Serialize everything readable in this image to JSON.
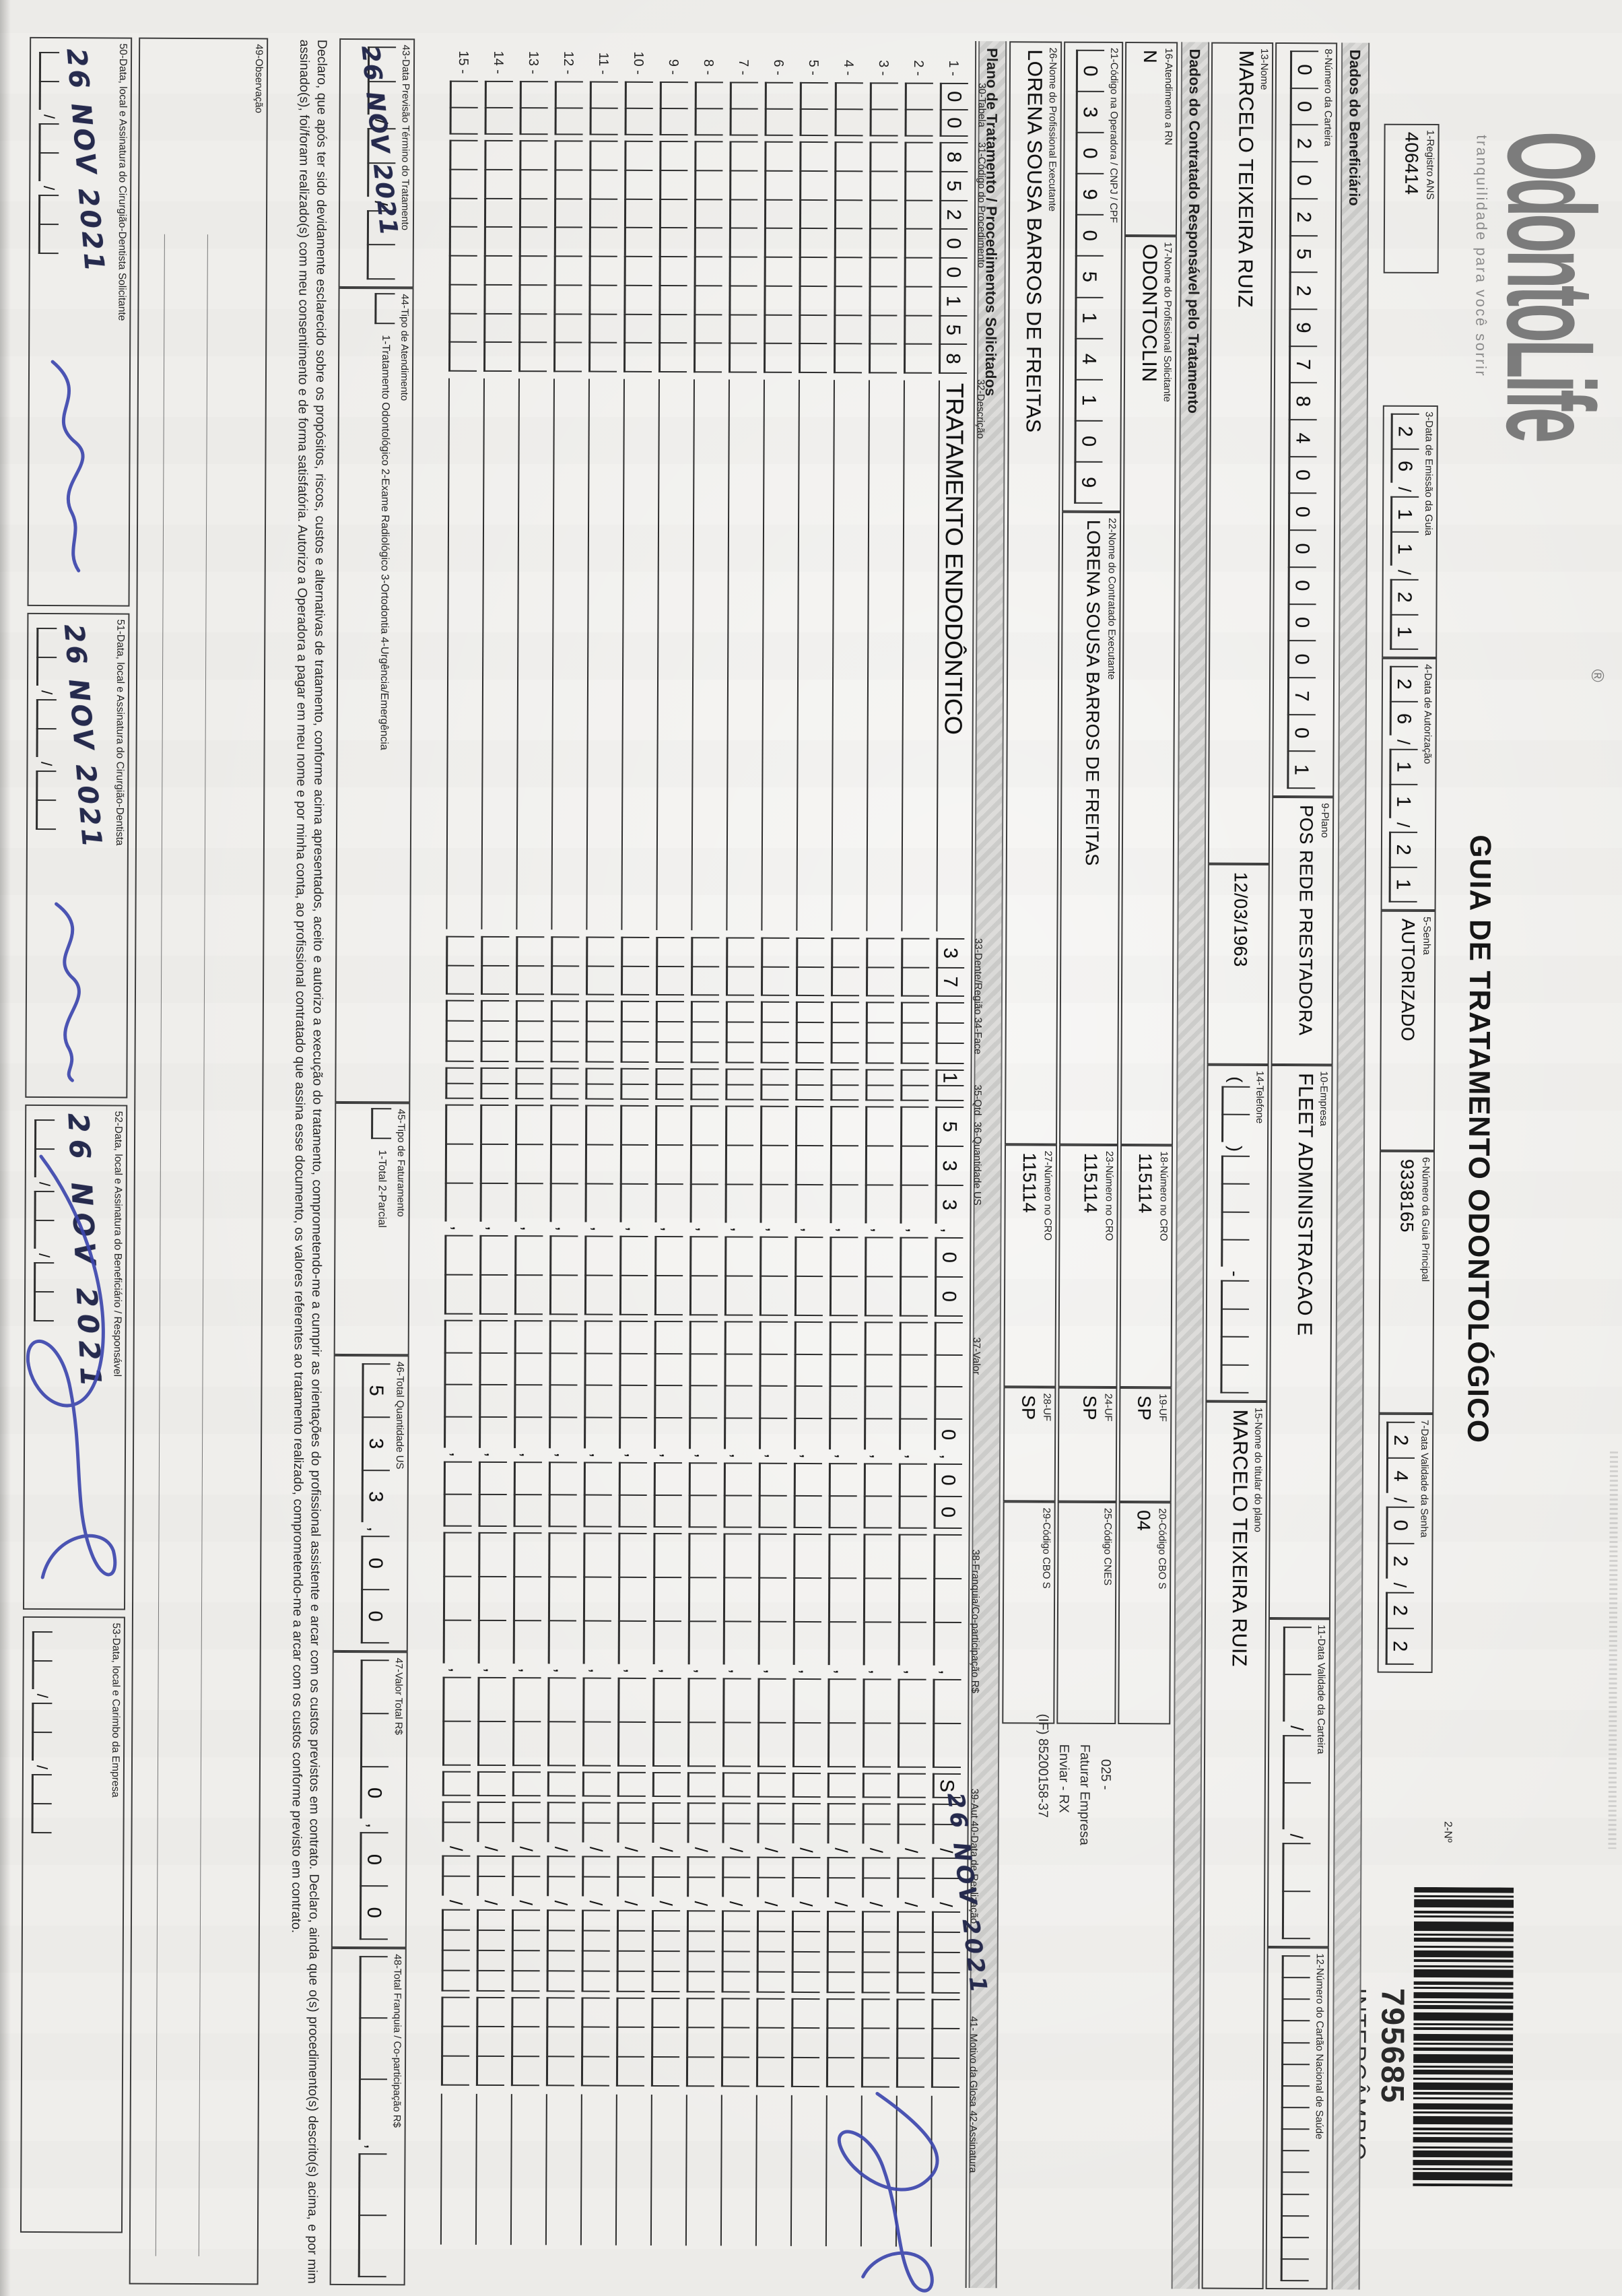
{
  "page": {
    "logo": {
      "text": "OdontoLife",
      "reg": "®",
      "tagline": "tranquilidade para você sorrir"
    },
    "title": "GUIA DE TRATAMENTO ODONTOLÓGICO",
    "no_label": "2-Nº",
    "barcode": {
      "number": "795685",
      "caption": "INTERCÂMBIO"
    },
    "dividers": {
      "beneficiario": "Dados do Beneficiário",
      "contratado": "Dados do Contratado Responsável pelo Tratamento",
      "plano": "Plano de Tratamento / Procedimentos Solicitados"
    }
  },
  "fields": {
    "f1": {
      "label": "1-Registro ANS",
      "value": "406414"
    },
    "f3": {
      "label": "3-Data de Emissão da Guia",
      "cells": "26/11/21"
    },
    "f4": {
      "label": "4-Data de Autorização",
      "cells": "26/11/21"
    },
    "f5": {
      "label": "5-Senha",
      "value": "AUTORIZADO"
    },
    "f6": {
      "label": "6-Número da Guia Principal",
      "value": "9338165"
    },
    "f7": {
      "label": "7-Data Validade da Senha",
      "cells": "24/02/22"
    },
    "f8": {
      "label": "8-Número da Carteira",
      "cells": "00202529784000000701"
    },
    "f9": {
      "label": "9-Plano",
      "value": "POS REDE PRESTADORA"
    },
    "f10": {
      "label": "10-Empresa",
      "value": "FLEET ADMINISTRACAO E"
    },
    "f11": {
      "label": "11-Data Validade da Carteira",
      "cells": "  /  /  "
    },
    "f12": {
      "label": "12-Número do Cartão Nacional de Saúde",
      "cells": "               "
    },
    "f13": {
      "label": "13-Nome",
      "value": "MARCELO TEIXEIRA RUIZ"
    },
    "f13b": {
      "label": "",
      "value": "12/03/1963"
    },
    "f14": {
      "label": "14-Telefone",
      "cells": "(  )    -    "
    },
    "f15": {
      "label": "15-Nome do titular do plano",
      "value": "MARCELO TEIXEIRA RUIZ"
    },
    "f16": {
      "label": "16-Atendimento a RN",
      "value": "N"
    },
    "f17": {
      "label": "17-Nome do Profissional Solicitante",
      "value": "ODONTOCLIN"
    },
    "f18": {
      "label": "18-Número no CRO",
      "value": "115114"
    },
    "f19": {
      "label": "19-UF",
      "value": "SP"
    },
    "f20": {
      "label": "20-Código CBO S",
      "value": "04"
    },
    "f21": {
      "label": "21-Código na Operadora / CNPJ / CPF",
      "cells": "03090514109"
    },
    "f22": {
      "label": "22-Nome do Contratado Executante",
      "value": "LORENA SOUSA BARROS DE FREITAS"
    },
    "f23": {
      "label": "23-Número no CRO",
      "value": "115114"
    },
    "f24": {
      "label": "24-UF",
      "value": "SP"
    },
    "f25": {
      "label": "25-Código CNES",
      "value": " "
    },
    "f26": {
      "label": "26-Nome do Profissional Executante",
      "value": "LORENA SOUSA BARROS DE FREITAS"
    },
    "f27": {
      "label": "27-Número no CRO",
      "value": "115114"
    },
    "f28": {
      "label": "28-UF",
      "value": "SP"
    },
    "f29": {
      "label": "29-Código CBO S",
      "value": " "
    },
    "f43": {
      "label": "43-Data Previsão Término do Tratamento",
      "cells": "  /  /  "
    },
    "f44": {
      "label": "44-Tipo de Atendimento",
      "cells": " ",
      "legend": "1-Tratamento Odontológico   2-Exame Radiológico   3-Ortodontia   4-Urgência/Emergência"
    },
    "f45": {
      "label": "45-Tipo de Faturamento",
      "cells": " ",
      "legend": "1-Total   2-Parcial"
    },
    "f46": {
      "label": "46-Total Quantidade US",
      "cells": "533,00"
    },
    "f47": {
      "label": "47-Valor Total R$",
      "cells": "  0,00"
    },
    "f48": {
      "label": "48-Total Franquia / Co-participação R$",
      "cells": "   ,  "
    },
    "f49": {
      "label": "49-Observação"
    }
  },
  "annotation": {
    "l1": "025 -",
    "l2": "Faturar Empresa",
    "l3": "Enviar - RX",
    "l4": "(IF) 85200158-37"
  },
  "table": {
    "headers": {
      "h30": "30-Tabela",
      "h31": "31-Código do Procedimento",
      "h32": "32-Descrição",
      "h33": "33-Dente/Região",
      "h34": "34-Face",
      "h35": "35-Qtd",
      "h36": "36-Quantidade US",
      "h37": "37-Valor",
      "h38": "38-Franquia/Co-participação R$",
      "h39": "39-Aut",
      "h40": "40-Data de Realização",
      "h41": "41- Motivo da Glosa",
      "h42": "42-Assinatura"
    },
    "rows": [
      {
        "n": "1 -",
        "tabela": "00",
        "codigo": "85200158",
        "desc": "TRATAMENTO ENDODÔNTICO",
        "dente": "37",
        "face": "   ",
        "qtd": "1 ",
        "qus": "533,00",
        "valor": "   0,00",
        "fran": "   ,  ",
        "aut": "S",
        "data": "  /  /    ",
        "glosa": "   ",
        "ass": ""
      },
      {
        "n": "2 -",
        "tabela": "  ",
        "codigo": "        ",
        "desc": "",
        "dente": "  ",
        "face": "   ",
        "qtd": "  ",
        "qus": "   ,  ",
        "valor": "    ,  ",
        "fran": "   ,  ",
        "aut": " ",
        "data": "  /  /    ",
        "glosa": "   ",
        "ass": ""
      },
      {
        "n": "3 -",
        "tabela": "  ",
        "codigo": "        ",
        "desc": "",
        "dente": "  ",
        "face": "   ",
        "qtd": "  ",
        "qus": "   ,  ",
        "valor": "    ,  ",
        "fran": "   ,  ",
        "aut": " ",
        "data": "  /  /    ",
        "glosa": "   ",
        "ass": ""
      },
      {
        "n": "4 -",
        "tabela": "  ",
        "codigo": "        ",
        "desc": "",
        "dente": "  ",
        "face": "   ",
        "qtd": "  ",
        "qus": "   ,  ",
        "valor": "    ,  ",
        "fran": "   ,  ",
        "aut": " ",
        "data": "  /  /    ",
        "glosa": "   ",
        "ass": ""
      },
      {
        "n": "5 -",
        "tabela": "  ",
        "codigo": "        ",
        "desc": "",
        "dente": "  ",
        "face": "   ",
        "qtd": "  ",
        "qus": "   ,  ",
        "valor": "    ,  ",
        "fran": "   ,  ",
        "aut": " ",
        "data": "  /  /    ",
        "glosa": "   ",
        "ass": ""
      },
      {
        "n": "6 -",
        "tabela": "  ",
        "codigo": "        ",
        "desc": "",
        "dente": "  ",
        "face": "   ",
        "qtd": "  ",
        "qus": "   ,  ",
        "valor": "    ,  ",
        "fran": "   ,  ",
        "aut": " ",
        "data": "  /  /    ",
        "glosa": "   ",
        "ass": ""
      },
      {
        "n": "7 -",
        "tabela": "  ",
        "codigo": "        ",
        "desc": "",
        "dente": "  ",
        "face": "   ",
        "qtd": "  ",
        "qus": "   ,  ",
        "valor": "    ,  ",
        "fran": "   ,  ",
        "aut": " ",
        "data": "  /  /    ",
        "glosa": "   ",
        "ass": ""
      },
      {
        "n": "8 -",
        "tabela": "  ",
        "codigo": "        ",
        "desc": "",
        "dente": "  ",
        "face": "   ",
        "qtd": "  ",
        "qus": "   ,  ",
        "valor": "    ,  ",
        "fran": "   ,  ",
        "aut": " ",
        "data": "  /  /    ",
        "glosa": "   ",
        "ass": ""
      },
      {
        "n": "9 -",
        "tabela": "  ",
        "codigo": "        ",
        "desc": "",
        "dente": "  ",
        "face": "   ",
        "qtd": "  ",
        "qus": "   ,  ",
        "valor": "    ,  ",
        "fran": "   ,  ",
        "aut": " ",
        "data": "  /  /    ",
        "glosa": "   ",
        "ass": ""
      },
      {
        "n": "10 -",
        "tabela": "  ",
        "codigo": "        ",
        "desc": "",
        "dente": "  ",
        "face": "   ",
        "qtd": "  ",
        "qus": "   ,  ",
        "valor": "    ,  ",
        "fran": "   ,  ",
        "aut": " ",
        "data": "  /  /    ",
        "glosa": "   ",
        "ass": ""
      },
      {
        "n": "11 -",
        "tabela": "  ",
        "codigo": "        ",
        "desc": "",
        "dente": "  ",
        "face": "   ",
        "qtd": "  ",
        "qus": "   ,  ",
        "valor": "    ,  ",
        "fran": "   ,  ",
        "aut": " ",
        "data": "  /  /    ",
        "glosa": "   ",
        "ass": ""
      },
      {
        "n": "12 -",
        "tabela": "  ",
        "codigo": "        ",
        "desc": "",
        "dente": "  ",
        "face": "   ",
        "qtd": "  ",
        "qus": "   ,  ",
        "valor": "    ,  ",
        "fran": "   ,  ",
        "aut": " ",
        "data": "  /  /    ",
        "glosa": "   ",
        "ass": ""
      },
      {
        "n": "13 -",
        "tabela": "  ",
        "codigo": "        ",
        "desc": "",
        "dente": "  ",
        "face": "   ",
        "qtd": "  ",
        "qus": "   ,  ",
        "valor": "    ,  ",
        "fran": "   ,  ",
        "aut": " ",
        "data": "  /  /    ",
        "glosa": "   ",
        "ass": ""
      },
      {
        "n": "14 -",
        "tabela": "  ",
        "codigo": "        ",
        "desc": "",
        "dente": "  ",
        "face": "   ",
        "qtd": "  ",
        "qus": "   ,  ",
        "valor": "    ,  ",
        "fran": "   ,  ",
        "aut": " ",
        "data": "  /  /    ",
        "glosa": "   ",
        "ass": ""
      },
      {
        "n": "15 -",
        "tabela": "  ",
        "codigo": "        ",
        "desc": "",
        "dente": "  ",
        "face": "   ",
        "qtd": "  ",
        "qus": "   ,  ",
        "valor": "    ,  ",
        "fran": "   ,  ",
        "aut": " ",
        "data": "  /  /    ",
        "glosa": "   ",
        "ass": ""
      }
    ]
  },
  "declaration": "Declaro, que após ter sido devidamente esclarecido sobre os propósitos, riscos, custos e alternativas de tratamento, conforme acima apresentados, aceito e autorizo a execução do tratamento, comprometendo-me a cumprir as orientações do profissional assistente e arcar com os custos previstos em contrato. Declaro, ainda que o(s) procedimento(s) descrito(s) acima, e por mim assinado(s), foi/foram realizado(s) com meu consentimento e de forma satisfatória. Autorizo a Operadora a pagar em meu nome e por minha conta, ao profissional contratado que assina esse documento, os valores referentes ao tratamento realizado, comprometendo-me a arcar com os custos conforme previsto em contrato.",
  "handwriting": {
    "date_43": "26 NOV 2021",
    "date_row1": "26 NOV 2021",
    "date_50": "26 NOV 2021",
    "date_51": "26 NOV 2021",
    "date_52": "26 NOV 2021"
  },
  "signatures": {
    "s50": {
      "label": "50-Data, local e Assinatura do Cirurgião-Dentista Solicitante",
      "cells": "  /  /  "
    },
    "s51": {
      "label": "51-Data, local e Assinatura do Cirurgião-Dentista",
      "cells": "  /  /  "
    },
    "s52": {
      "label": "52-Data, local e Assinatura do Beneficiário / Responsável",
      "cells": "  /  /  "
    },
    "s53": {
      "label": "53-Data, local e Carimbo da Empresa",
      "cells": "  /  /  "
    }
  },
  "colors": {
    "ink_blue": "#3d47ae",
    "ink_dark": "#262b4e",
    "paper": "#efeeeb"
  }
}
